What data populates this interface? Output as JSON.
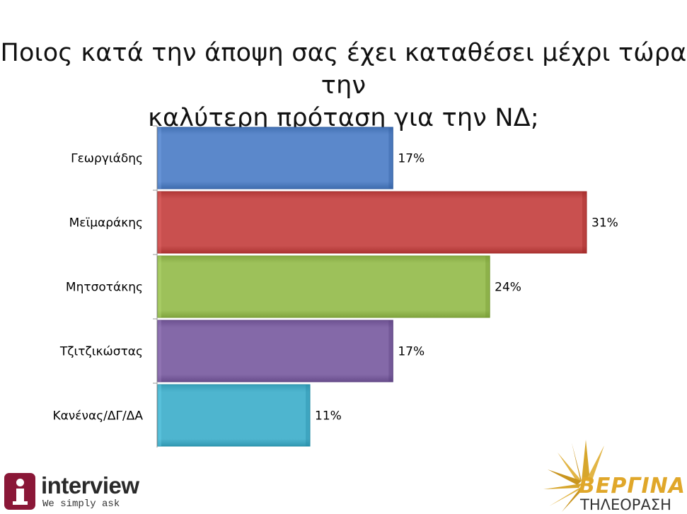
{
  "title": {
    "line1": "Ποιος κατά την άποψη σας έχει καταθέσει μέχρι τώρα την",
    "line2": "καλύτερη πρόταση για την ΝΔ;"
  },
  "chart_data": {
    "type": "bar",
    "orientation": "horizontal",
    "title": "Ποιος κατά την άποψη σας έχει καταθέσει μέχρι τώρα την καλύτερη πρόταση για την ΝΔ;",
    "categories": [
      "Γεωργιάδης",
      "Μεϊμαράκης",
      "Μητσοτάκης",
      "Τζιτζικώστας",
      "Κανένας/ΔΓ/ΔΑ"
    ],
    "values": [
      17,
      31,
      24,
      17,
      11
    ],
    "value_labels": [
      "17%",
      "31%",
      "24%",
      "17%",
      "11%"
    ],
    "colors": [
      "#5b88cb",
      "#c9504f",
      "#9dc15a",
      "#8469a8",
      "#4eb5cf"
    ],
    "xlabel": "",
    "ylabel": "",
    "xlim": [
      0,
      35
    ],
    "grid": false,
    "legend": "none"
  },
  "logos": {
    "left": {
      "name": "interview",
      "tagline": "We simply ask"
    },
    "right": {
      "name": "ΒΕΡΓΙΝΑ",
      "sub": "ΤΗΛΕΟΡΑΣΗ"
    }
  }
}
